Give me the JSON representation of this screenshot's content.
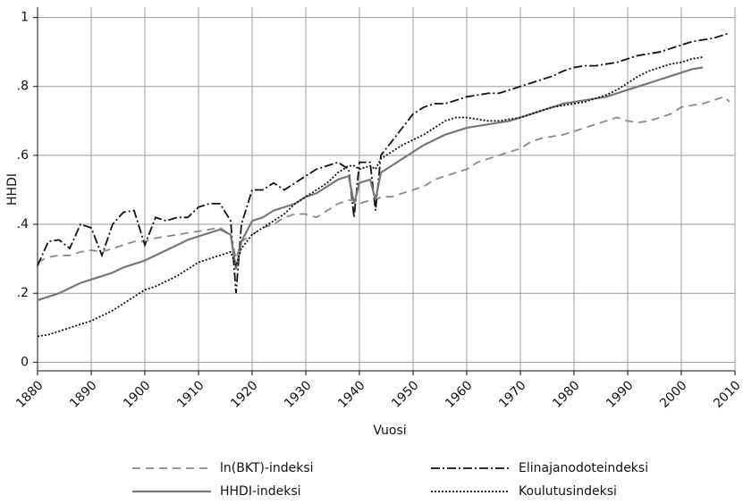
{
  "chart_data": {
    "type": "line",
    "xlabel": "Vuosi",
    "ylabel": "HHDI",
    "xlim": [
      1880,
      2010
    ],
    "ylim": [
      -0.025,
      1.03
    ],
    "xticks": [
      1880,
      1890,
      1900,
      1910,
      1920,
      1930,
      1940,
      1950,
      1960,
      1970,
      1980,
      1990,
      2000,
      2010
    ],
    "yticks": [
      0,
      {
        "value": 0.2,
        "label": ".2"
      },
      {
        "value": 0.4,
        "label": ".4"
      },
      {
        "value": 0.6,
        "label": ".6"
      },
      {
        "value": 0.8,
        "label": ".8"
      },
      1
    ],
    "grid": true,
    "legend": "bottom",
    "x": [
      1880,
      1882,
      1884,
      1886,
      1888,
      1890,
      1892,
      1894,
      1896,
      1898,
      1900,
      1902,
      1904,
      1906,
      1908,
      1910,
      1912,
      1914,
      1916,
      1917,
      1918,
      1920,
      1922,
      1924,
      1926,
      1928,
      1930,
      1932,
      1934,
      1936,
      1938,
      1939,
      1940,
      1942,
      1943,
      1944,
      1946,
      1948,
      1950,
      1952,
      1954,
      1956,
      1958,
      1960,
      1962,
      1964,
      1966,
      1968,
      1970,
      1972,
      1974,
      1976,
      1978,
      1980,
      1982,
      1984,
      1986,
      1988,
      1990,
      1992,
      1994,
      1996,
      1998,
      2000,
      2002,
      2004,
      2006,
      2008,
      2009
    ],
    "series": [
      {
        "name": "ln(BKT)-indeksi",
        "color": "#8a8a8a",
        "style": "dashed",
        "values": [
          0.29,
          0.305,
          0.31,
          0.31,
          0.32,
          0.325,
          0.32,
          0.33,
          0.34,
          0.35,
          0.35,
          0.36,
          0.365,
          0.37,
          0.375,
          0.38,
          0.385,
          0.39,
          0.37,
          0.3,
          0.35,
          0.37,
          0.39,
          0.4,
          0.42,
          0.43,
          0.43,
          0.42,
          0.44,
          0.46,
          0.47,
          0.47,
          0.46,
          0.47,
          0.47,
          0.48,
          0.48,
          0.49,
          0.5,
          0.51,
          0.53,
          0.54,
          0.55,
          0.56,
          0.58,
          0.59,
          0.6,
          0.61,
          0.62,
          0.64,
          0.65,
          0.655,
          0.66,
          0.67,
          0.68,
          0.69,
          0.7,
          0.71,
          0.7,
          0.695,
          0.7,
          0.71,
          0.72,
          0.74,
          0.745,
          0.75,
          0.76,
          0.77,
          0.755
        ]
      },
      {
        "name": "Elinajanodoteindeksi",
        "color": "#111111",
        "style": "dashdot",
        "values": [
          0.28,
          0.35,
          0.355,
          0.33,
          0.4,
          0.39,
          0.31,
          0.4,
          0.435,
          0.44,
          0.34,
          0.42,
          0.41,
          0.42,
          0.42,
          0.45,
          0.46,
          0.46,
          0.41,
          0.2,
          0.4,
          0.5,
          0.5,
          0.52,
          0.5,
          0.52,
          0.54,
          0.56,
          0.57,
          0.58,
          0.56,
          0.42,
          0.58,
          0.58,
          0.44,
          0.6,
          0.64,
          0.68,
          0.72,
          0.74,
          0.75,
          0.75,
          0.76,
          0.77,
          0.775,
          0.78,
          0.78,
          0.79,
          0.8,
          0.81,
          0.82,
          0.83,
          0.845,
          0.855,
          0.86,
          0.86,
          0.865,
          0.87,
          0.88,
          0.89,
          0.895,
          0.9,
          0.91,
          0.92,
          0.93,
          0.935,
          0.94,
          0.95,
          0.955
        ]
      },
      {
        "name": "HHDI-indeksi",
        "color": "#777777",
        "style": "solid",
        "values": [
          0.18,
          0.19,
          0.2,
          0.215,
          0.23,
          0.24,
          0.25,
          0.26,
          0.275,
          0.285,
          0.295,
          0.31,
          0.325,
          0.34,
          0.355,
          0.365,
          0.375,
          0.385,
          0.37,
          0.27,
          0.35,
          0.41,
          0.42,
          0.44,
          0.45,
          0.46,
          0.48,
          0.49,
          0.51,
          0.53,
          0.54,
          0.46,
          0.52,
          0.53,
          0.47,
          0.55,
          0.57,
          0.59,
          0.61,
          0.63,
          0.645,
          0.66,
          0.67,
          0.68,
          0.685,
          0.69,
          0.695,
          0.7,
          0.71,
          0.72,
          0.73,
          0.74,
          0.75,
          0.755,
          0.76,
          0.765,
          0.77,
          0.78,
          0.79,
          0.8,
          0.81,
          0.82,
          0.83,
          0.84,
          0.85,
          0.855,
          null,
          null,
          null
        ]
      },
      {
        "name": "Koulutusindeksi",
        "color": "#111111",
        "style": "dotted",
        "values": [
          0.075,
          0.08,
          0.09,
          0.1,
          0.11,
          0.12,
          0.135,
          0.15,
          0.17,
          0.19,
          0.21,
          0.22,
          0.235,
          0.25,
          0.27,
          0.29,
          0.3,
          0.31,
          0.32,
          0.28,
          0.33,
          0.37,
          0.39,
          0.41,
          0.43,
          0.46,
          0.48,
          0.5,
          0.52,
          0.55,
          0.57,
          0.57,
          0.56,
          0.57,
          0.56,
          0.59,
          0.61,
          0.63,
          0.645,
          0.66,
          0.68,
          0.7,
          0.71,
          0.71,
          0.705,
          0.7,
          0.7,
          0.705,
          0.71,
          0.72,
          0.73,
          0.74,
          0.745,
          0.75,
          0.755,
          0.765,
          0.775,
          0.79,
          0.81,
          0.83,
          0.845,
          0.855,
          0.865,
          0.87,
          0.88,
          0.885,
          null,
          null,
          null
        ]
      }
    ]
  }
}
